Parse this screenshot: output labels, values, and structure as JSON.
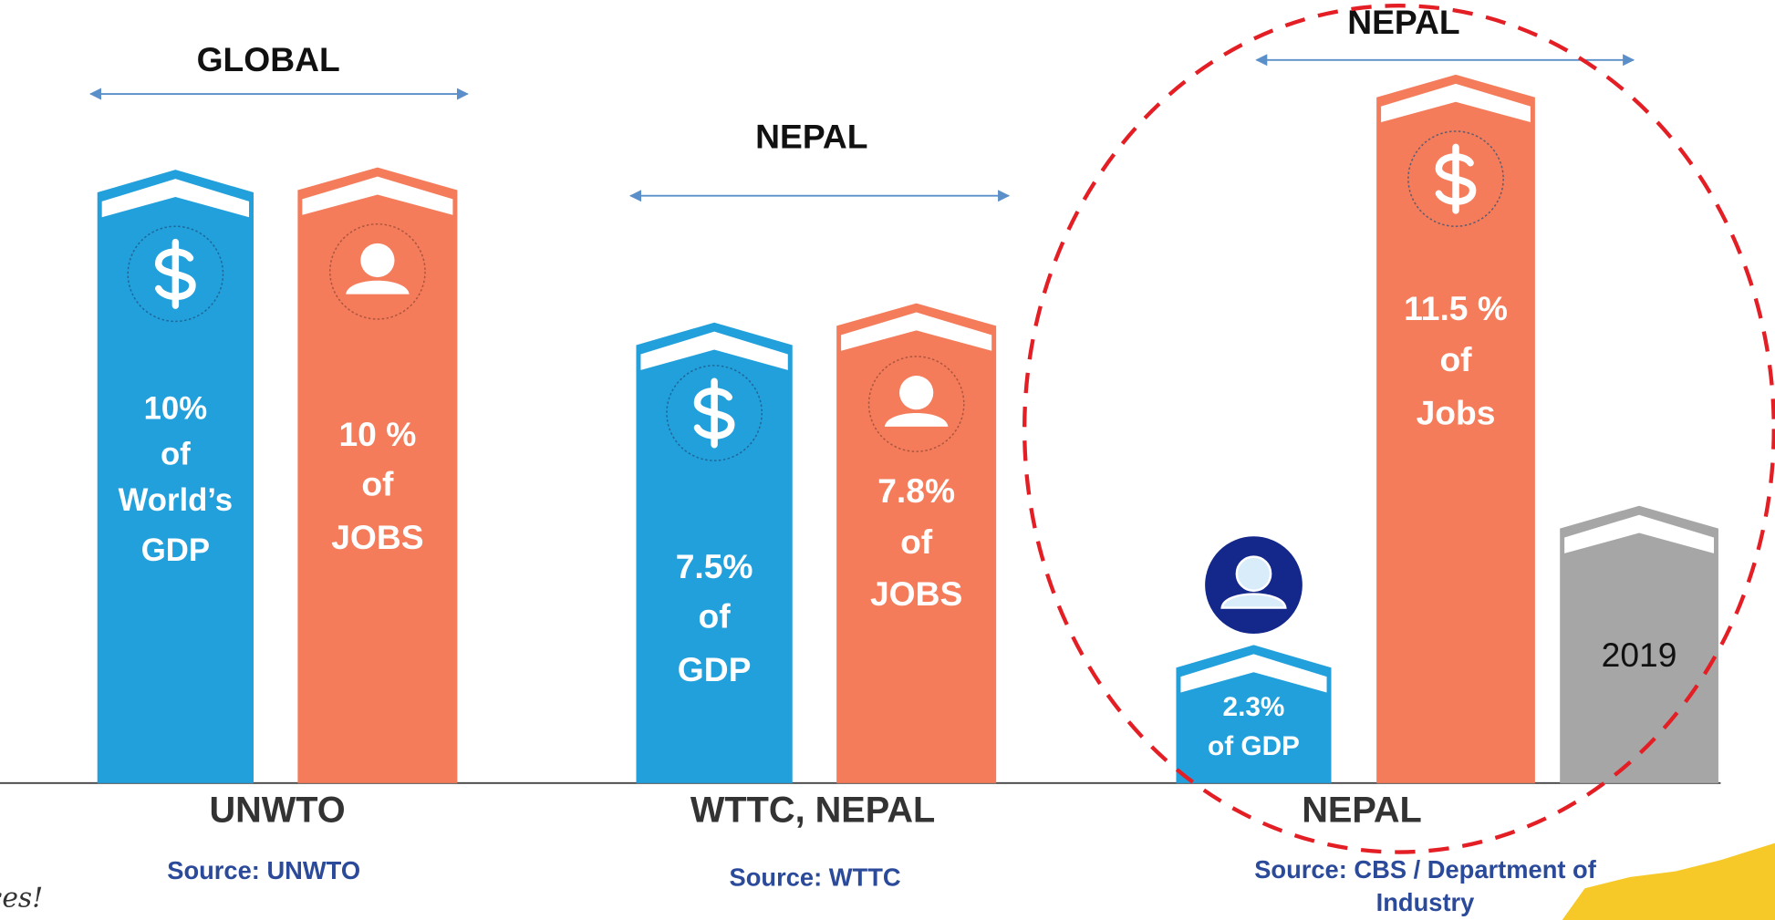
{
  "panels": [
    {
      "heading": "GLOBAL",
      "label": "UNWTO",
      "source": [
        "Source: UNWTO"
      ],
      "bars": [
        {
          "lines": [
            "10%",
            "of",
            "World’s",
            "GDP"
          ]
        },
        {
          "lines": [
            "10 %",
            "of",
            "JOBS"
          ]
        }
      ]
    },
    {
      "heading": "NEPAL",
      "label": "WTTC, NEPAL",
      "source": [
        "Source: WTTC"
      ],
      "bars": [
        {
          "lines": [
            "7.5%",
            "of",
            "GDP"
          ]
        },
        {
          "lines": [
            "7.8%",
            "of",
            "JOBS"
          ]
        }
      ]
    },
    {
      "heading": "NEPAL",
      "label": "NEPAL",
      "source": [
        "Source: CBS / Department of",
        "Industry"
      ],
      "bars": [
        {
          "lines": [
            "2.3%",
            "of GDP"
          ]
        },
        {
          "lines": [
            "11.5 %",
            "of",
            "Jobs"
          ]
        },
        {
          "lines": [
            "2019"
          ]
        }
      ]
    }
  ],
  "footer": "iences!"
}
